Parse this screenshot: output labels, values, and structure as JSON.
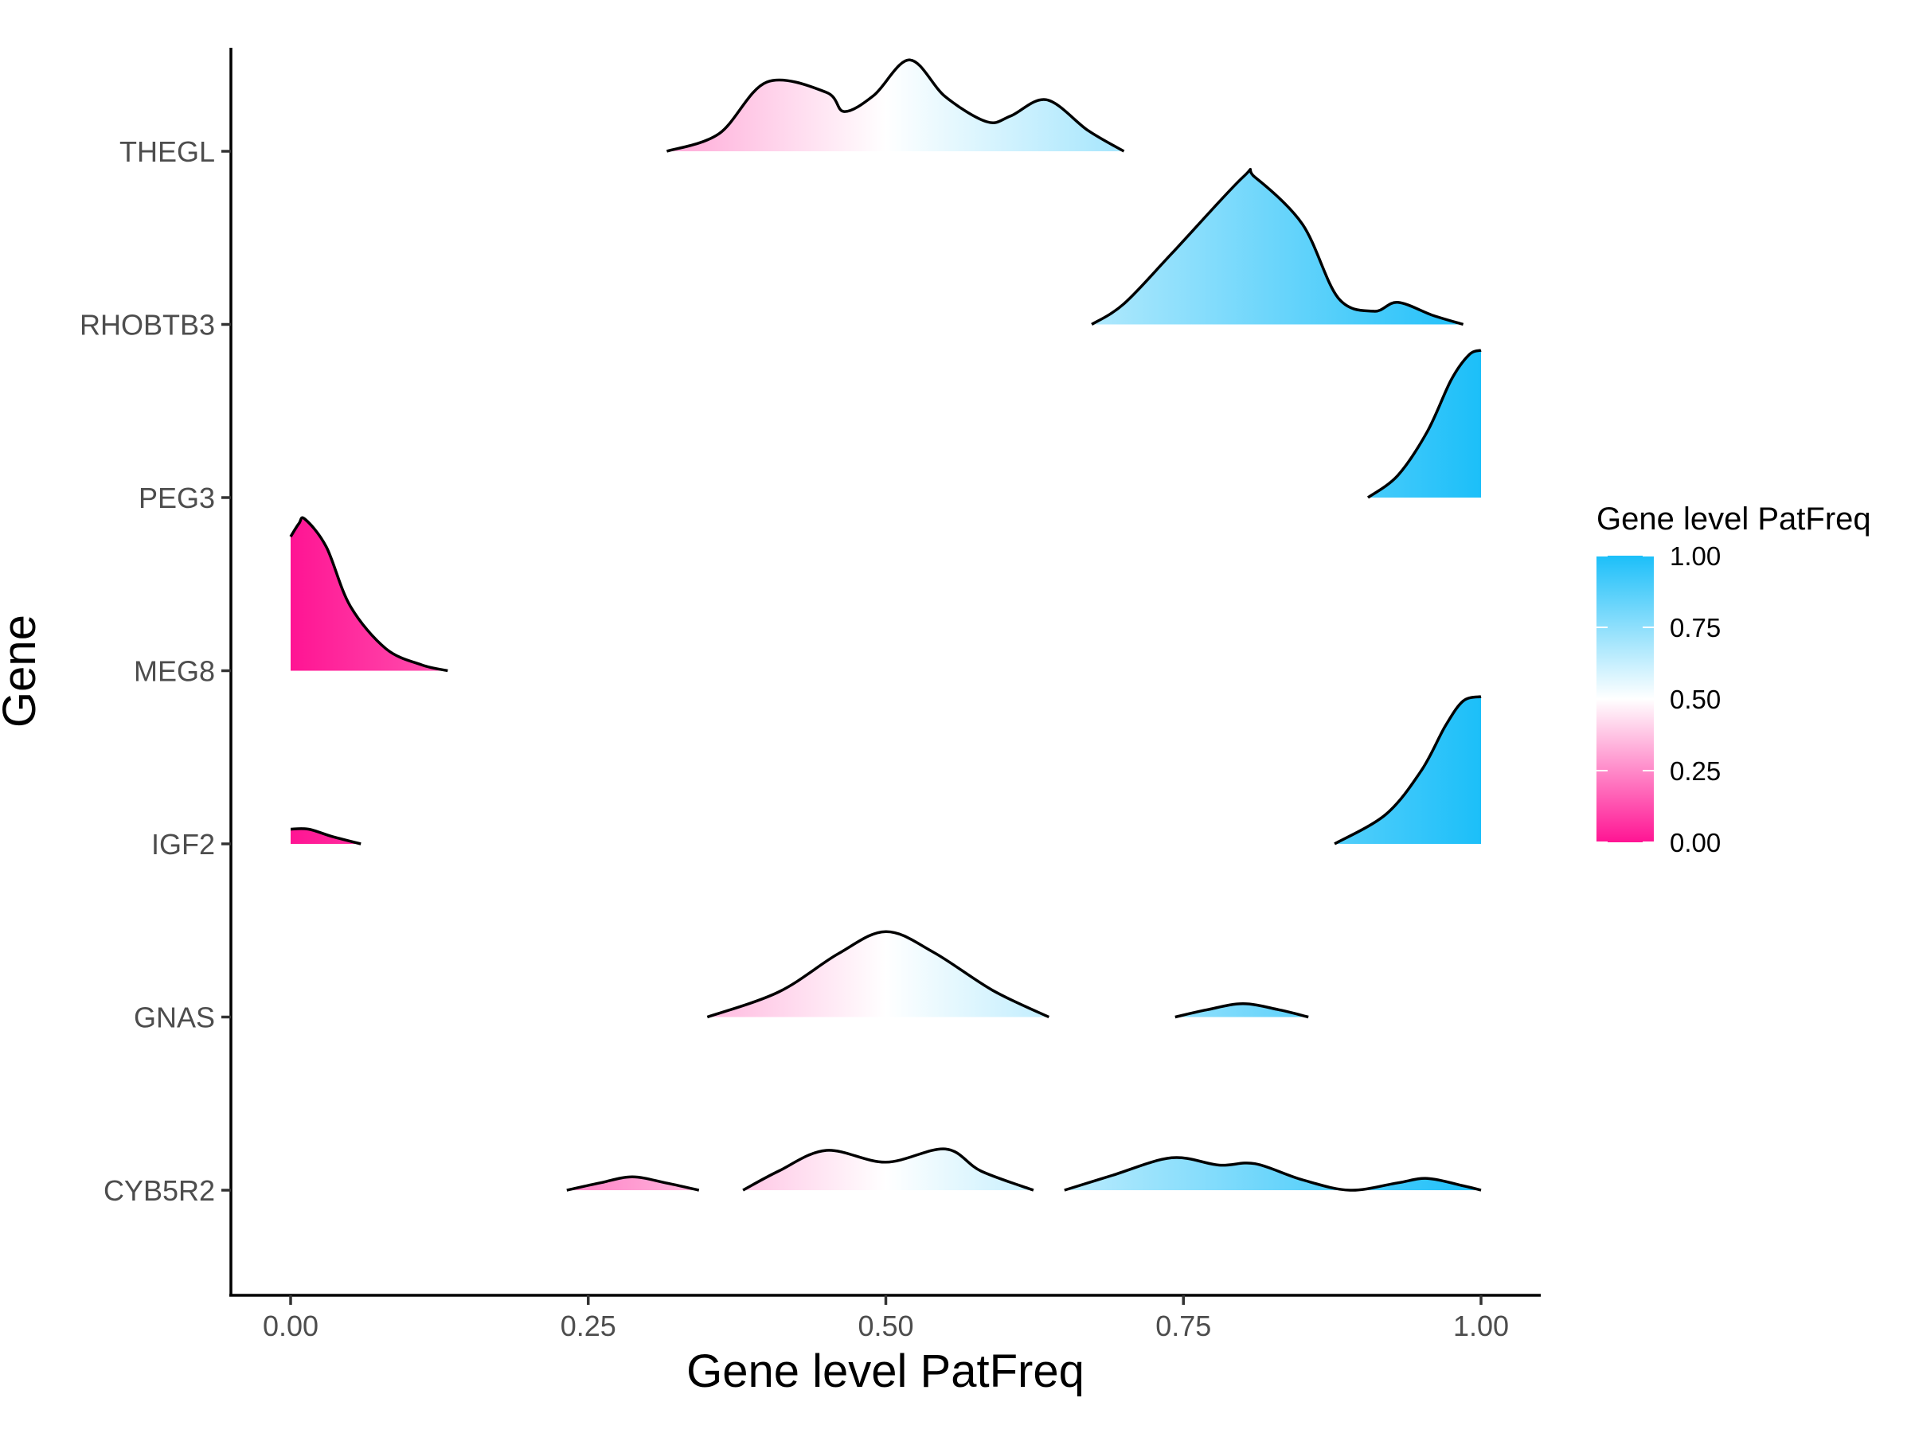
{
  "chart_data": {
    "type": "ridgeline",
    "xlabel": "Gene level PatFreq",
    "ylabel": "Gene",
    "xlim": [
      0,
      1
    ],
    "x_ticks": [
      "0.00",
      "0.25",
      "0.50",
      "0.75",
      "1.00"
    ],
    "grid": false,
    "legend": {
      "title": "Gene level PatFreq",
      "position": "right",
      "ticks": [
        "1.00",
        "0.75",
        "0.50",
        "0.25",
        "0.00"
      ],
      "colors": {
        "low": "#FF1493",
        "mid": "#FFFFFF",
        "high": "#1CBFF9"
      }
    },
    "series": [
      {
        "name": "THEGL",
        "x": [
          0.316,
          0.36,
          0.4,
          0.45,
          0.465,
          0.49,
          0.52,
          0.55,
          0.585,
          0.605,
          0.635,
          0.67,
          0.7
        ],
        "density": [
          0.0,
          0.12,
          0.47,
          0.4,
          0.27,
          0.38,
          0.62,
          0.37,
          0.2,
          0.24,
          0.35,
          0.14,
          0.0
        ]
      },
      {
        "name": "RHOBTB3",
        "x": [
          0.673,
          0.7,
          0.74,
          0.8,
          0.81,
          0.85,
          0.88,
          0.91,
          0.93,
          0.96,
          0.985
        ],
        "density": [
          0.0,
          0.14,
          0.48,
          1.0,
          1.0,
          0.68,
          0.18,
          0.09,
          0.15,
          0.06,
          0.0
        ]
      },
      {
        "name": "PEG3",
        "x": [
          0.905,
          0.93,
          0.955,
          0.975,
          0.99,
          1.0
        ],
        "density": [
          0.0,
          0.15,
          0.45,
          0.8,
          0.97,
          1.0
        ]
      },
      {
        "name": "MEG8",
        "x": [
          0.0,
          0.007,
          0.012,
          0.03,
          0.05,
          0.08,
          0.11,
          0.132
        ],
        "density": [
          0.91,
          1.0,
          1.03,
          0.84,
          0.44,
          0.15,
          0.04,
          0.0
        ]
      },
      {
        "name": "IGF2",
        "x": [
          0.0,
          0.015,
          0.035,
          0.059,
          0.877,
          0.92,
          0.95,
          0.97,
          0.985,
          1.0
        ],
        "density": [
          0.1,
          0.1,
          0.05,
          0.0,
          0.0,
          0.2,
          0.5,
          0.8,
          0.97,
          1.0
        ]
      },
      {
        "name": "GNAS",
        "x": [
          0.35,
          0.41,
          0.46,
          0.5,
          0.54,
          0.59,
          0.637,
          0.743,
          0.77,
          0.8,
          0.83,
          0.855
        ],
        "density": [
          0.0,
          0.17,
          0.43,
          0.58,
          0.44,
          0.18,
          0.0,
          0.0,
          0.05,
          0.09,
          0.05,
          0.0
        ]
      },
      {
        "name": "CYB5R2",
        "x": [
          0.232,
          0.26,
          0.287,
          0.315,
          0.343,
          0.38,
          0.41,
          0.45,
          0.5,
          0.55,
          0.58,
          0.624,
          0.65,
          0.69,
          0.74,
          0.78,
          0.81,
          0.85,
          0.89,
          0.93,
          0.955,
          0.985,
          1.0
        ],
        "density": [
          0.0,
          0.05,
          0.09,
          0.05,
          0.0,
          0.0,
          0.13,
          0.27,
          0.19,
          0.28,
          0.13,
          0.0,
          0.0,
          0.1,
          0.22,
          0.17,
          0.18,
          0.07,
          0.0,
          0.05,
          0.08,
          0.03,
          0.0
        ]
      }
    ]
  }
}
